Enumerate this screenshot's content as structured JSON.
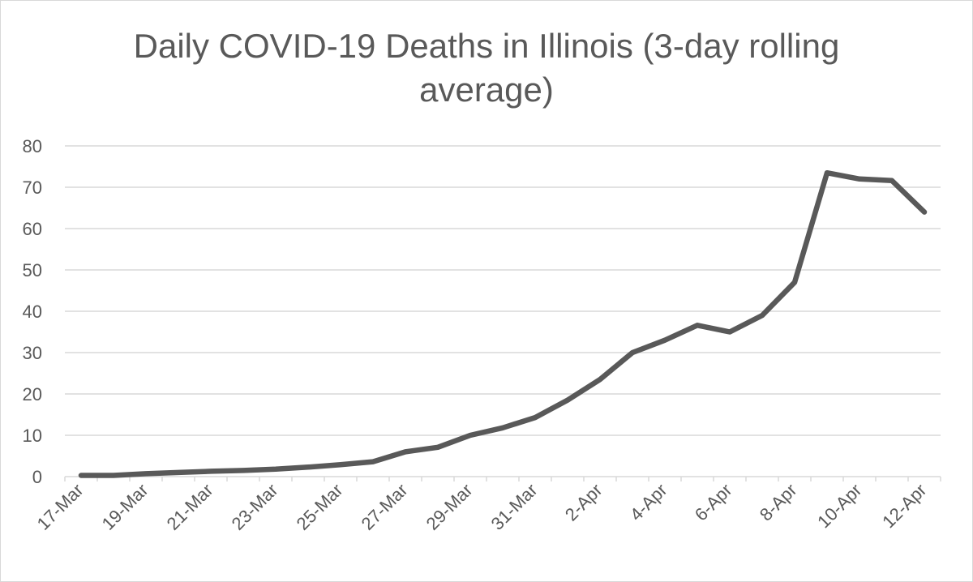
{
  "chart_data": {
    "type": "line",
    "title": "Daily COVID-19 Deaths in Illinois (3-day rolling average)",
    "xlabel": "",
    "ylabel": "",
    "ylim": [
      0,
      80
    ],
    "yticks": [
      0,
      10,
      20,
      30,
      40,
      50,
      60,
      70,
      80
    ],
    "grid": true,
    "legend": "none",
    "x": [
      "17-Mar",
      "18-Mar",
      "19-Mar",
      "20-Mar",
      "21-Mar",
      "22-Mar",
      "23-Mar",
      "24-Mar",
      "25-Mar",
      "26-Mar",
      "27-Mar",
      "28-Mar",
      "29-Mar",
      "30-Mar",
      "31-Mar",
      "1-Apr",
      "2-Apr",
      "3-Apr",
      "4-Apr",
      "5-Apr",
      "6-Apr",
      "7-Apr",
      "8-Apr",
      "9-Apr",
      "10-Apr",
      "11-Apr",
      "12-Apr"
    ],
    "x_tick_labels": [
      "17-Mar",
      "19-Mar",
      "21-Mar",
      "23-Mar",
      "25-Mar",
      "27-Mar",
      "29-Mar",
      "31-Mar",
      "2-Apr",
      "4-Apr",
      "6-Apr",
      "8-Apr",
      "10-Apr",
      "12-Apr"
    ],
    "series": [
      {
        "values": [
          0.3,
          0.3,
          0.7,
          1.0,
          1.3,
          1.5,
          1.8,
          2.3,
          2.9,
          3.6,
          6.0,
          7.1,
          10.0,
          11.8,
          14.3,
          18.5,
          23.5,
          30.0,
          33.0,
          36.6,
          35.0,
          39.0,
          47.0,
          73.5,
          72.0,
          71.6,
          64.0
        ],
        "color": "#595959"
      }
    ],
    "colors": {
      "line": "#595959",
      "grid": "#d9d9d9",
      "text": "#595959"
    }
  }
}
